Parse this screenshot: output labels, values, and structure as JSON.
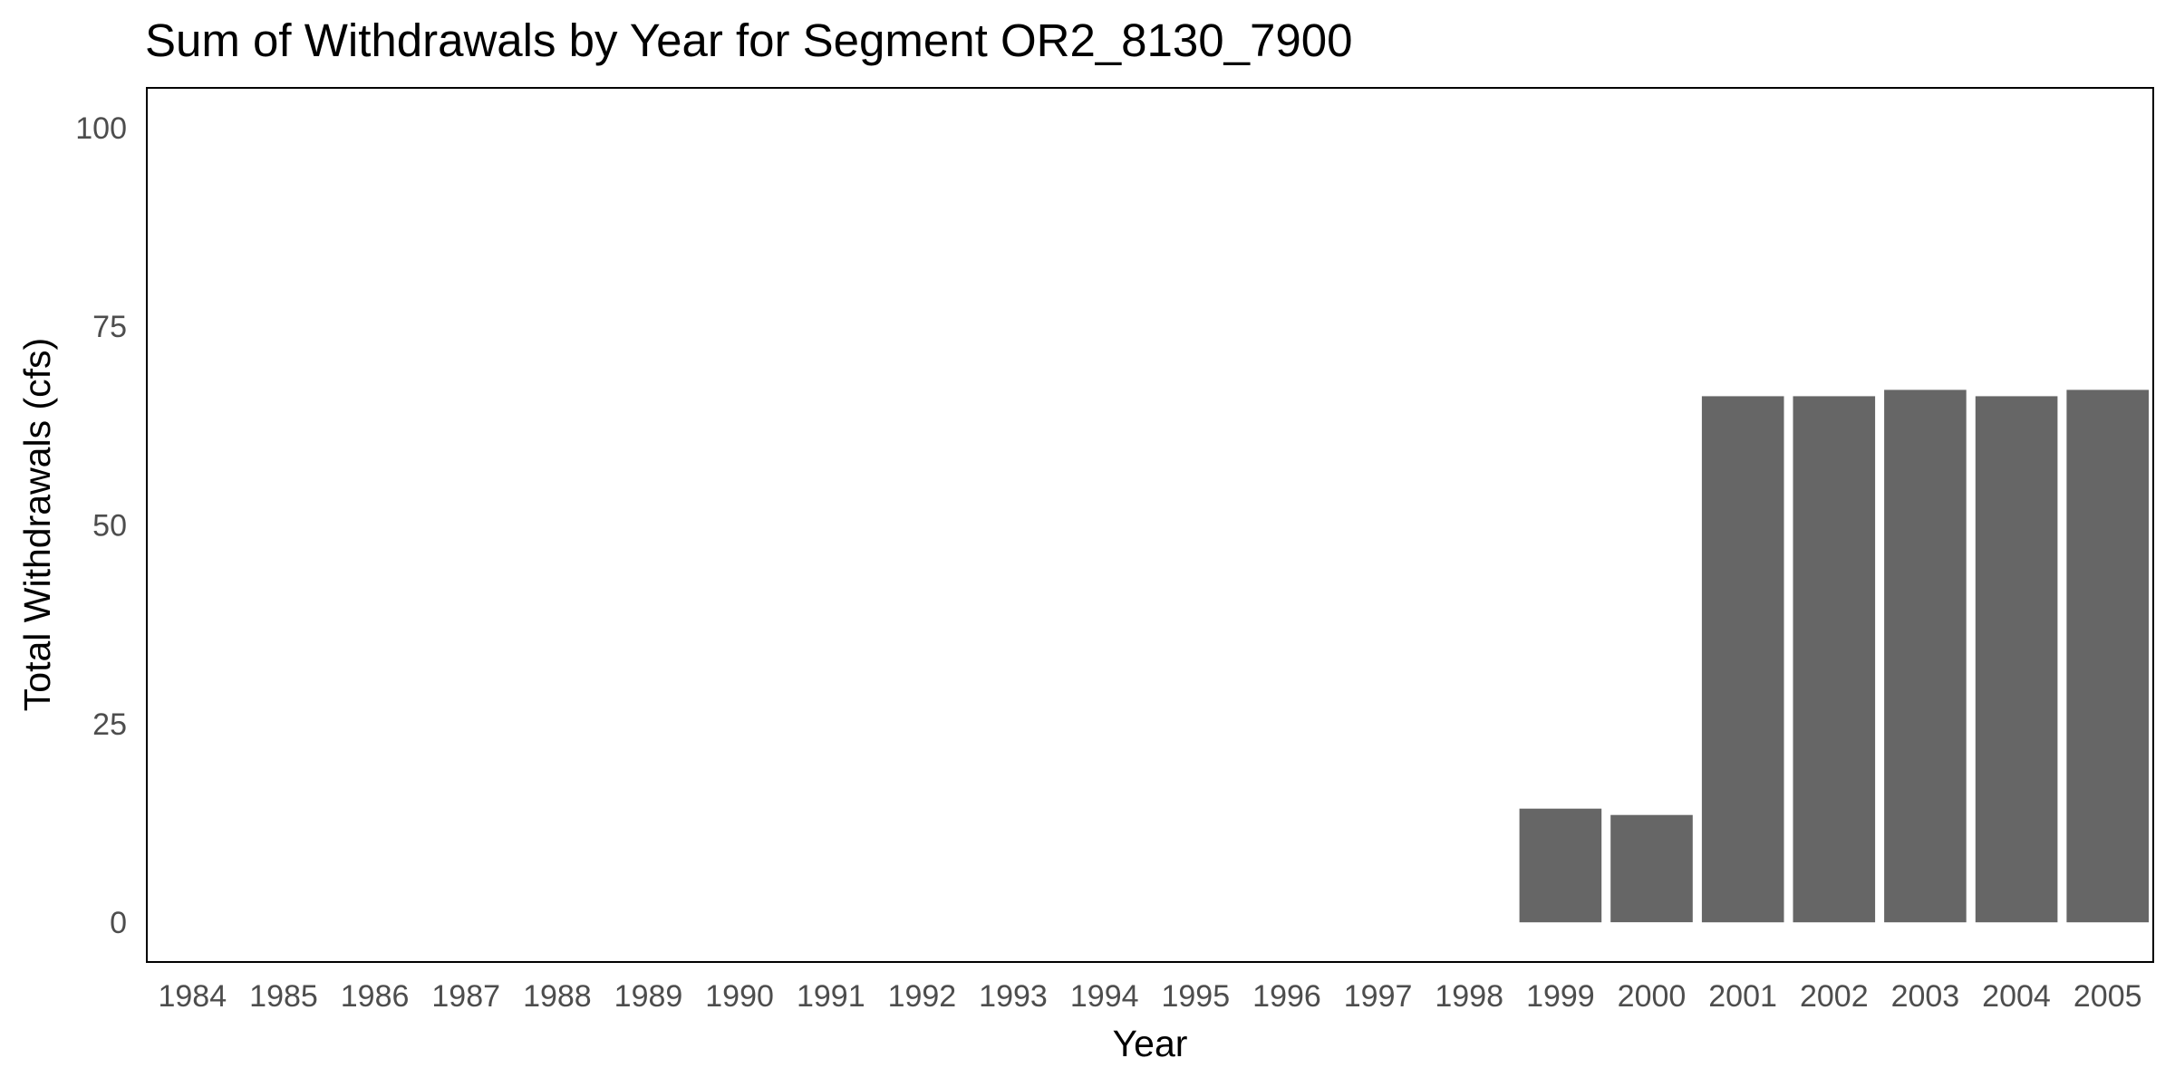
{
  "chart_data": {
    "type": "bar",
    "title": "Sum of Withdrawals by Year for Segment OR2_8130_7900",
    "xlabel": "Year",
    "ylabel": "Total Withdrawals (cfs)",
    "ylim": [
      -5,
      105
    ],
    "yticks": [
      0,
      25,
      50,
      75,
      100
    ],
    "categories": [
      "1984",
      "1985",
      "1986",
      "1987",
      "1988",
      "1989",
      "1990",
      "1991",
      "1992",
      "1993",
      "1994",
      "1995",
      "1996",
      "1997",
      "1998",
      "1999",
      "2000",
      "2001",
      "2002",
      "2003",
      "2004",
      "2005"
    ],
    "values": [
      0,
      0,
      0,
      0,
      0,
      0,
      0,
      0,
      0,
      0,
      0,
      0,
      0,
      0,
      0,
      14.3,
      13.5,
      66.2,
      66.2,
      67.0,
      66.2,
      67.0
    ],
    "grid": false,
    "bar_color": "#666666",
    "frame_color": "#000000"
  }
}
